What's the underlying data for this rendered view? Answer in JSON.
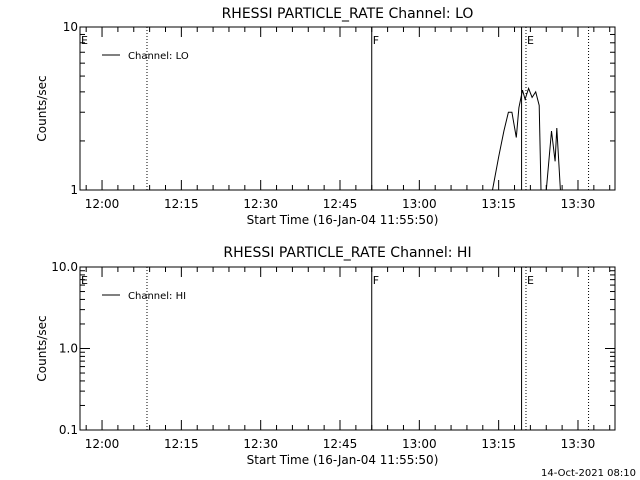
{
  "footer": {
    "date": "14-Oct-2021 08:10"
  },
  "chart_data": [
    {
      "type": "line",
      "title": "RHESSI PARTICLE_RATE Channel: LO",
      "xlabel": "Start Time (16-Jan-04 11:55:50)",
      "ylabel": "Counts/sec",
      "yscale": "log",
      "ylim": [
        1,
        10
      ],
      "xlim": [
        "11:55:50",
        "13:37:00"
      ],
      "y_ticks": [
        {
          "value": 1,
          "label": "1"
        },
        {
          "value": 10,
          "label": "10"
        }
      ],
      "x_ticks": [
        {
          "value": "12:00",
          "label": "12:00"
        },
        {
          "value": "12:15",
          "label": "12:15"
        },
        {
          "value": "12:30",
          "label": "12:30"
        },
        {
          "value": "12:45",
          "label": "12:45"
        },
        {
          "value": "13:00",
          "label": "13:00"
        },
        {
          "value": "13:15",
          "label": "13:15"
        },
        {
          "value": "13:30",
          "label": "13:30"
        }
      ],
      "legend": {
        "entries": [
          "Channel: LO"
        ],
        "placement": "top-left"
      },
      "markers": [
        {
          "time": "11:55:50",
          "label": "E",
          "style": "none"
        },
        {
          "time": "12:08:30",
          "label": "",
          "style": "dotted"
        },
        {
          "time": "12:51:00",
          "label": "F",
          "style": "solid"
        },
        {
          "time": "13:19:20",
          "label": "",
          "style": "solid"
        },
        {
          "time": "13:20:10",
          "label": "E",
          "style": "dotted"
        },
        {
          "time": "13:32:00",
          "label": "",
          "style": "dotted"
        }
      ],
      "series": [
        {
          "name": "Channel: LO",
          "x": [
            "13:09:00",
            "13:11:40",
            "13:13:50",
            "13:15:00",
            "13:16:00",
            "13:16:50",
            "13:17:30",
            "13:18:20",
            "13:18:50",
            "13:19:30",
            "13:20:00",
            "13:20:40",
            "13:21:20",
            "13:22:00",
            "13:22:40",
            "13:23:00",
            "13:23:40",
            "13:24:00",
            "13:25:00",
            "13:25:40",
            "13:26:00",
            "13:26:40",
            "13:27:10"
          ],
          "y": [
            1,
            1,
            1,
            1.6,
            2.3,
            3.0,
            3.0,
            2.1,
            3.2,
            4.1,
            3.6,
            4.2,
            3.7,
            4.0,
            3.3,
            1.0,
            1.0,
            1.0,
            2.3,
            1.5,
            2.4,
            1.0,
            1.0
          ]
        }
      ]
    },
    {
      "type": "line",
      "title": "RHESSI PARTICLE_RATE Channel: HI",
      "xlabel": "Start Time (16-Jan-04 11:55:50)",
      "ylabel": "Counts/sec",
      "yscale": "log",
      "ylim": [
        0.1,
        10
      ],
      "xlim": [
        "11:55:50",
        "13:37:00"
      ],
      "y_ticks": [
        {
          "value": 0.1,
          "label": "0.1"
        },
        {
          "value": 1,
          "label": "1.0"
        },
        {
          "value": 10,
          "label": "10.0"
        }
      ],
      "x_ticks": [
        {
          "value": "12:00",
          "label": "12:00"
        },
        {
          "value": "12:15",
          "label": "12:15"
        },
        {
          "value": "12:30",
          "label": "12:30"
        },
        {
          "value": "12:45",
          "label": "12:45"
        },
        {
          "value": "13:00",
          "label": "13:00"
        },
        {
          "value": "13:15",
          "label": "13:15"
        },
        {
          "value": "13:30",
          "label": "13:30"
        }
      ],
      "legend": {
        "entries": [
          "Channel: HI"
        ],
        "placement": "top-left"
      },
      "markers": [
        {
          "time": "11:55:50",
          "label": "E",
          "style": "none"
        },
        {
          "time": "12:08:30",
          "label": "",
          "style": "dotted"
        },
        {
          "time": "12:51:00",
          "label": "F",
          "style": "solid"
        },
        {
          "time": "13:19:20",
          "label": "",
          "style": "solid"
        },
        {
          "time": "13:20:10",
          "label": "E",
          "style": "dotted"
        },
        {
          "time": "13:32:00",
          "label": "",
          "style": "dotted"
        }
      ],
      "series": [
        {
          "name": "Channel: HI",
          "x": [],
          "y": []
        }
      ]
    }
  ]
}
